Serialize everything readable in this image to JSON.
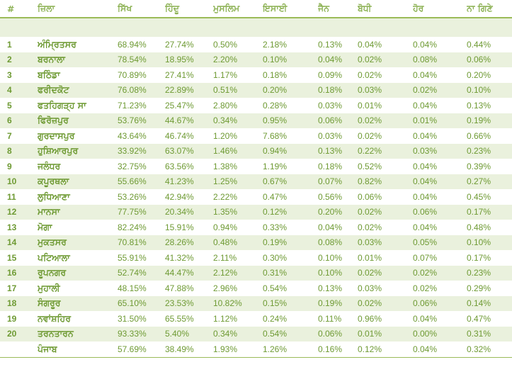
{
  "headers": [
    "#",
    "ਜ਼ਿਲਾ",
    "ਸਿੱਖ",
    "ਹਿੰਦੂ",
    "ਮੁਸਲਿਮ",
    "ਇਸਾਈ",
    "ਜੈਨ",
    "ਬੋਧੀ",
    "ਹੋਰ",
    "ਨਾ ਗਿਣੇ"
  ],
  "rows": [
    [
      "1",
      "ਅੰਮ੍ਰਿਤਸਰ",
      "68.94%",
      "27.74%",
      "0.50%",
      "2.18%",
      "0.13%",
      "0.04%",
      "0.04%",
      "0.44%"
    ],
    [
      "2",
      "ਬਰਨਾਲਾ",
      "78.54%",
      "18.95%",
      "2.20%",
      "0.10%",
      "0.04%",
      "0.02%",
      "0.08%",
      "0.06%"
    ],
    [
      "3",
      "ਬਠਿੰਡਾ",
      "70.89%",
      "27.41%",
      "1.17%",
      "0.18%",
      "0.09%",
      "0.02%",
      "0.04%",
      "0.20%"
    ],
    [
      "4",
      "ਫਰੀਦਕੋਟ",
      "76.08%",
      "22.89%",
      "0.51%",
      "0.20%",
      "0.18%",
      "0.03%",
      "0.02%",
      "0.10%"
    ],
    [
      "5",
      "ਫਤਹਿਗੜ੍ਹ ਸਾ",
      "71.23%",
      "25.47%",
      "2.80%",
      "0.28%",
      "0.03%",
      "0.01%",
      "0.04%",
      "0.13%"
    ],
    [
      "6",
      "ਫਿਰੋਜ਼ਪੁਰ",
      "53.76%",
      "44.67%",
      "0.34%",
      "0.95%",
      "0.06%",
      "0.02%",
      "0.01%",
      "0.19%"
    ],
    [
      "7",
      "ਗੁਰਦਾਸਪੁਰ",
      "43.64%",
      "46.74%",
      "1.20%",
      "7.68%",
      "0.03%",
      "0.02%",
      "0.04%",
      "0.66%"
    ],
    [
      "8",
      "ਹੁਸ਼ਿਆਰਪੁਰ",
      "33.92%",
      "63.07%",
      "1.46%",
      "0.94%",
      "0.13%",
      "0.22%",
      "0.03%",
      "0.23%"
    ],
    [
      "9",
      "ਜਲੰਧਰ",
      "32.75%",
      "63.56%",
      "1.38%",
      "1.19%",
      "0.18%",
      "0.52%",
      "0.04%",
      "0.39%"
    ],
    [
      "10",
      "ਕਪੂਰਥਲਾ",
      "55.66%",
      "41.23%",
      "1.25%",
      "0.67%",
      "0.07%",
      "0.82%",
      "0.04%",
      "0.27%"
    ],
    [
      "11",
      "ਲੁਧਿਆਣਾ",
      "53.26%",
      "42.94%",
      "2.22%",
      "0.47%",
      "0.56%",
      "0.06%",
      "0.04%",
      "0.45%"
    ],
    [
      "12",
      "ਮਾਨਸਾ",
      "77.75%",
      "20.34%",
      "1.35%",
      "0.12%",
      "0.20%",
      "0.02%",
      "0.06%",
      "0.17%"
    ],
    [
      "13",
      "ਮੋਗਾ",
      "82.24%",
      "15.91%",
      "0.94%",
      "0.33%",
      "0.04%",
      "0.02%",
      "0.04%",
      "0.48%"
    ],
    [
      "14",
      "ਮੁਕਤਸਰ",
      "70.81%",
      "28.26%",
      "0.48%",
      "0.19%",
      "0.08%",
      "0.03%",
      "0.05%",
      "0.10%"
    ],
    [
      "15",
      "ਪਟਿਆਲਾ",
      "55.91%",
      "41.32%",
      "2.11%",
      "0.30%",
      "0.10%",
      "0.01%",
      "0.07%",
      "0.17%"
    ],
    [
      "16",
      "ਰੂਪਨਗਰ",
      "52.74%",
      "44.47%",
      "2.12%",
      "0.31%",
      "0.10%",
      "0.02%",
      "0.02%",
      "0.23%"
    ],
    [
      "17",
      "ਮੁਹਾਲੀ",
      "48.15%",
      "47.88%",
      "2.96%",
      "0.54%",
      "0.13%",
      "0.03%",
      "0.02%",
      "0.29%"
    ],
    [
      "18",
      "ਸੰਗਰੂਰ",
      "65.10%",
      "23.53%",
      "10.82%",
      "0.15%",
      "0.19%",
      "0.02%",
      "0.06%",
      "0.14%"
    ],
    [
      "19",
      "ਨਵਾਂਸ਼ਹਿਰ",
      "31.50%",
      "65.55%",
      "1.12%",
      "0.24%",
      "0.11%",
      "0.96%",
      "0.04%",
      "0.47%"
    ],
    [
      "20",
      "ਤਰਨਤਾਰਨ",
      "93.33%",
      "5.40%",
      "0.34%",
      "0.54%",
      "0.06%",
      "0.01%",
      "0.00%",
      "0.31%"
    ],
    [
      "",
      "ਪੰਜਾਬ",
      "57.69%",
      "38.49%",
      "1.93%",
      "1.26%",
      "0.16%",
      "0.12%",
      "0.04%",
      "0.32%"
    ]
  ]
}
